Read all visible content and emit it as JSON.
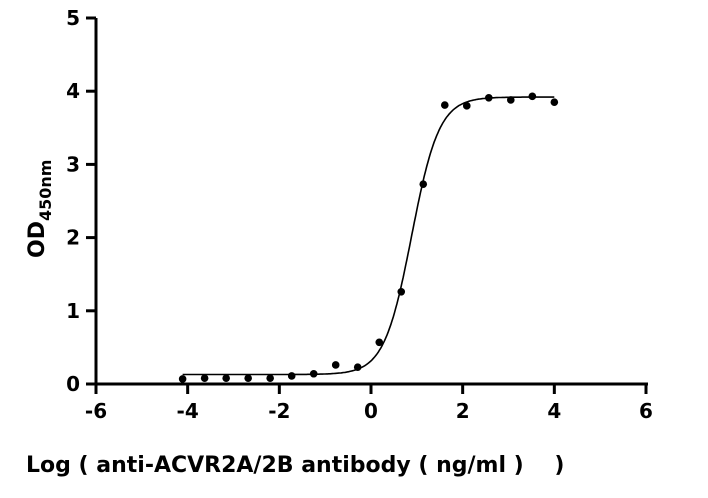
{
  "chart_data": {
    "type": "scatter",
    "title": "",
    "xlabel": "Log ( anti-ACVR2A/2B antibody ( ng/ml )    )",
    "ylabel": "OD",
    "ylabel_subscript": "450nm",
    "xlim": [
      -6,
      6
    ],
    "ylim": [
      0,
      5
    ],
    "xticks": [
      "-6",
      "-4",
      "-2",
      "0",
      "2",
      "4",
      "6"
    ],
    "yticks": [
      "0",
      "1",
      "2",
      "3",
      "4",
      "5"
    ],
    "grid": false,
    "legend": "none",
    "marker_color": "#000000",
    "series": [
      {
        "x": [
          -4.11,
          -3.63,
          -3.16,
          -2.68,
          -2.2,
          -1.73,
          -1.25,
          -0.77,
          -0.29,
          0.18,
          0.66,
          1.14,
          1.61,
          2.09,
          2.57,
          3.05,
          3.52,
          4.0
        ],
        "y": [
          0.07,
          0.08,
          0.08,
          0.08,
          0.08,
          0.11,
          0.14,
          0.26,
          0.23,
          0.57,
          1.26,
          2.73,
          3.81,
          3.8,
          3.91,
          3.88,
          3.93,
          3.85
        ]
      }
    ],
    "fit_curve": {
      "model": "4PL",
      "bottom": 0.13,
      "top": 3.92,
      "log_ec50": 0.887,
      "hill_slope": 1.45,
      "x_range": [
        -4.11,
        4.0
      ]
    }
  }
}
